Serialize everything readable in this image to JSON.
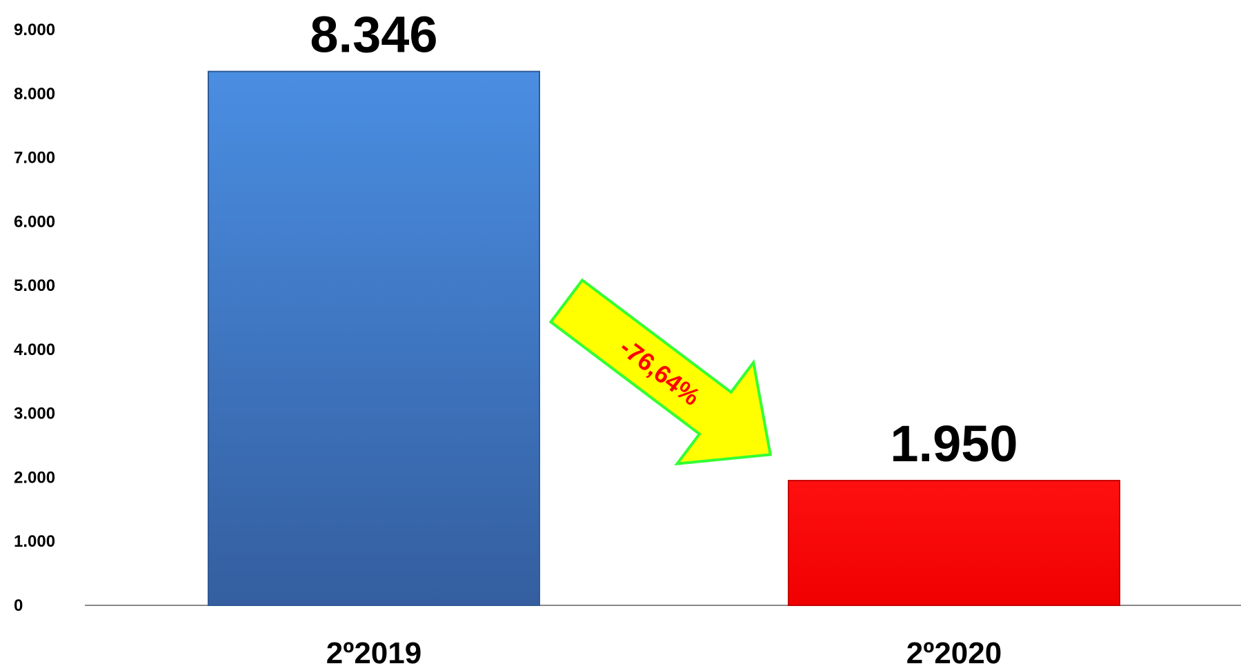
{
  "chart_data": {
    "type": "bar",
    "categories": [
      "2º2019",
      "2º2020"
    ],
    "values": [
      8346,
      1950
    ],
    "value_labels": [
      "8.346",
      "1.950"
    ],
    "y_ticks": [
      0,
      1000,
      2000,
      3000,
      4000,
      5000,
      6000,
      7000,
      8000,
      9000
    ],
    "y_tick_labels": [
      "0",
      "1.000",
      "2.000",
      "3.000",
      "4.000",
      "5.000",
      "6.000",
      "7.000",
      "8.000",
      "9.000"
    ],
    "ylim": [
      0,
      9000
    ],
    "bar_colors": [
      "#3f7fd0",
      "#ff0000"
    ],
    "grid": false,
    "legend": "none",
    "annotation": {
      "text": "-76,64%",
      "shape": "down-right arrow",
      "fill_color": "#ffff00",
      "border_color": "#33ff33",
      "text_color": "#ff0000"
    }
  }
}
